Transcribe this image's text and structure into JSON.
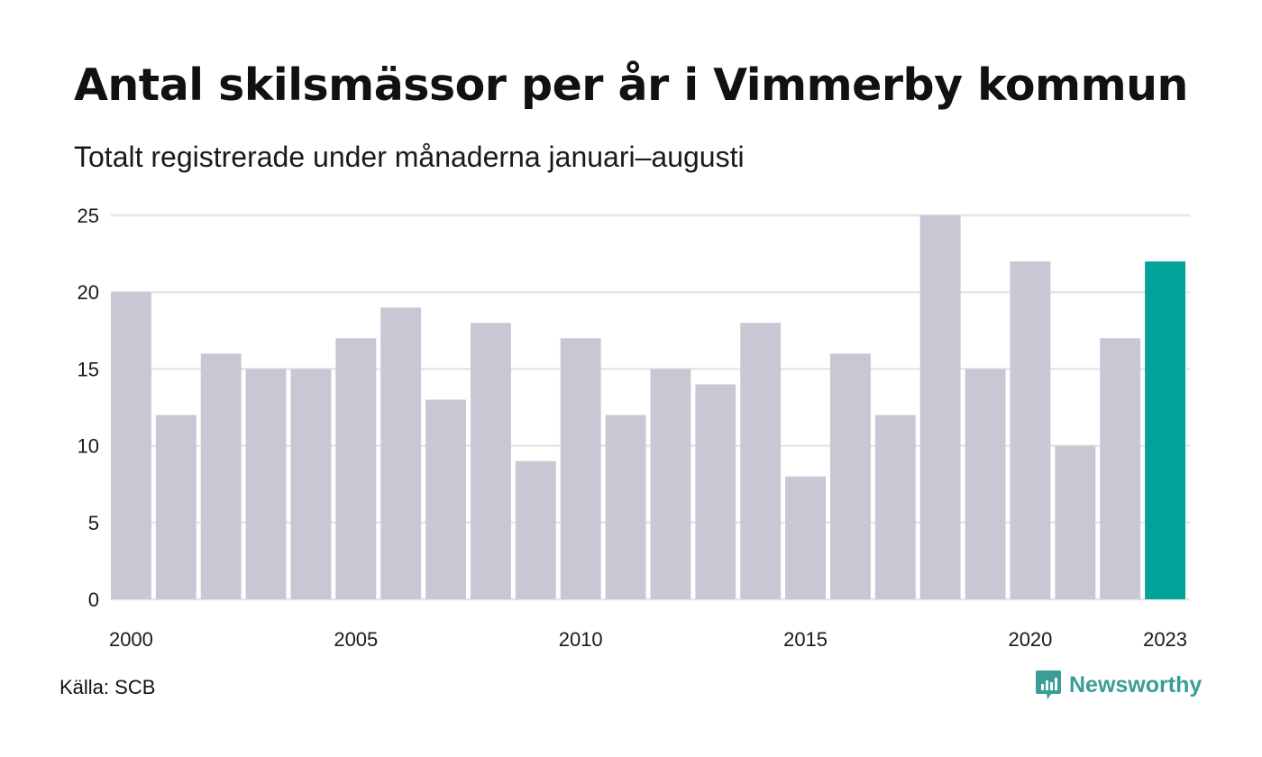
{
  "title": "Antal skilsmässor per år i Vimmerby kommun",
  "subtitle": "Totalt registrerade under månaderna januari–augusti",
  "source": "Källa: SCB",
  "brand": {
    "name": "Newsworthy",
    "icon": "newsworthy-logo-icon",
    "color": "#3a9e94"
  },
  "chart_data": {
    "type": "bar",
    "x": [
      2000,
      2001,
      2002,
      2003,
      2004,
      2005,
      2006,
      2007,
      2008,
      2009,
      2010,
      2011,
      2012,
      2013,
      2014,
      2015,
      2016,
      2017,
      2018,
      2019,
      2020,
      2021,
      2022,
      2023
    ],
    "values": [
      20,
      12,
      16,
      15,
      15,
      17,
      19,
      13,
      18,
      9,
      17,
      12,
      15,
      14,
      18,
      8,
      16,
      12,
      25,
      15,
      22,
      10,
      17,
      22
    ],
    "x_tick_labels": [
      "2000",
      "2005",
      "2010",
      "2015",
      "2020",
      "2023"
    ],
    "y_ticks": [
      0,
      5,
      10,
      15,
      20,
      25
    ],
    "ylim": [
      0,
      25
    ],
    "grid": true,
    "highlight": 2023,
    "colors": {
      "bar": "#c8c7d3",
      "highlight": "#00a39a",
      "grid": "#e6e6e6"
    }
  }
}
